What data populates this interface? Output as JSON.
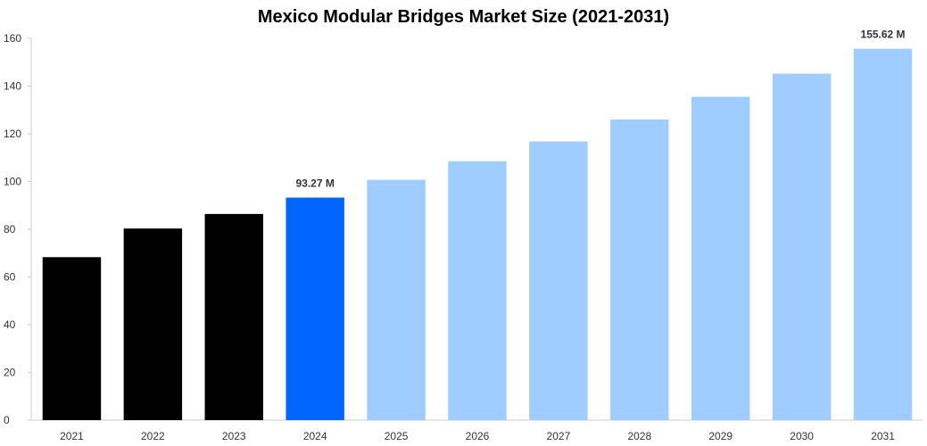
{
  "chart_data": {
    "type": "bar",
    "title": "Mexico Modular Bridges Market Size (2021-2031)",
    "xlabel": "",
    "ylabel": "",
    "categories": [
      "2021",
      "2022",
      "2023",
      "2024",
      "2025",
      "2026",
      "2027",
      "2028",
      "2029",
      "2030",
      "2031"
    ],
    "values": [
      68.3,
      80.3,
      86.4,
      93.27,
      100.7,
      108.5,
      116.8,
      126.0,
      135.5,
      145.2,
      155.62
    ],
    "bar_colors": [
      "#000000",
      "#000000",
      "#000000",
      "#0066ff",
      "#a0cdff",
      "#a0cdff",
      "#a0cdff",
      "#a0cdff",
      "#a0cdff",
      "#a0cdff",
      "#a0cdff"
    ],
    "data_labels": [
      {
        "category": "2024",
        "text": "93.27 M"
      },
      {
        "category": "2031",
        "text": "155.62 M"
      }
    ],
    "ylim": [
      0,
      160
    ],
    "yticks": [
      0,
      20,
      40,
      60,
      80,
      100,
      120,
      140,
      160
    ],
    "grid": false,
    "legend": "none"
  }
}
